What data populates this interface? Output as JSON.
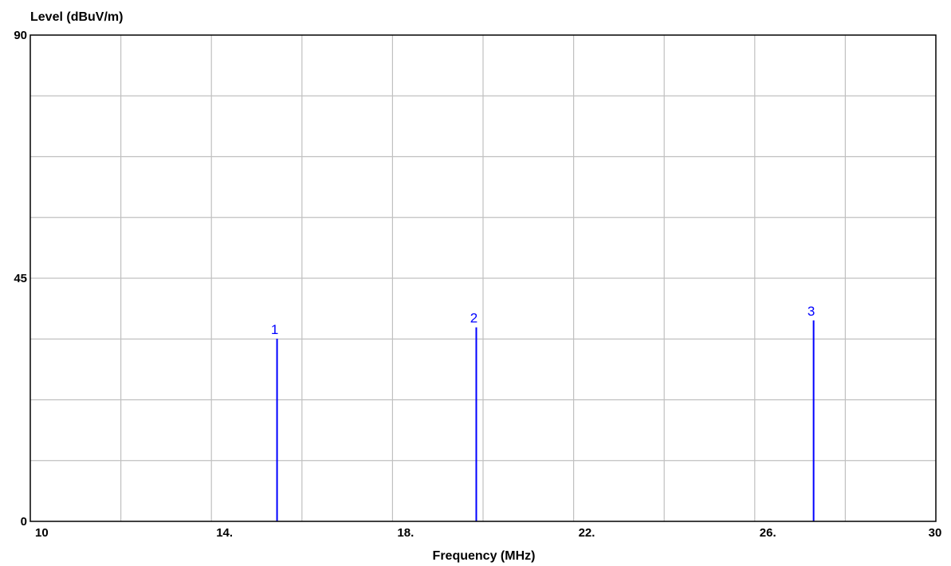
{
  "chart_data": {
    "type": "bar",
    "ylabel": "Level (dBuV/m)",
    "xlabel": "Frequency (MHz)",
    "xlim": [
      10,
      30
    ],
    "ylim": [
      0,
      90
    ],
    "x_ticks": [
      10,
      14,
      18,
      22,
      26,
      30
    ],
    "x_tick_labels": [
      "10",
      "14.",
      "18.",
      "22.",
      "26.",
      "30"
    ],
    "y_ticks": [
      0,
      45,
      90
    ],
    "y_tick_labels": [
      "0",
      "45",
      "90"
    ],
    "grid": true,
    "x_grid_step": 2,
    "y_grid_step": 11.25,
    "series": [
      {
        "markers": [
          {
            "label": "1",
            "frequency": 15.45,
            "level": 33.8
          },
          {
            "label": "2",
            "frequency": 19.85,
            "level": 35.9
          },
          {
            "label": "3",
            "frequency": 27.3,
            "level": 37.2
          }
        ]
      }
    ],
    "colors": {
      "markers": "#0000ff",
      "grid": "#c0c0c0",
      "frame": "#000000"
    }
  }
}
